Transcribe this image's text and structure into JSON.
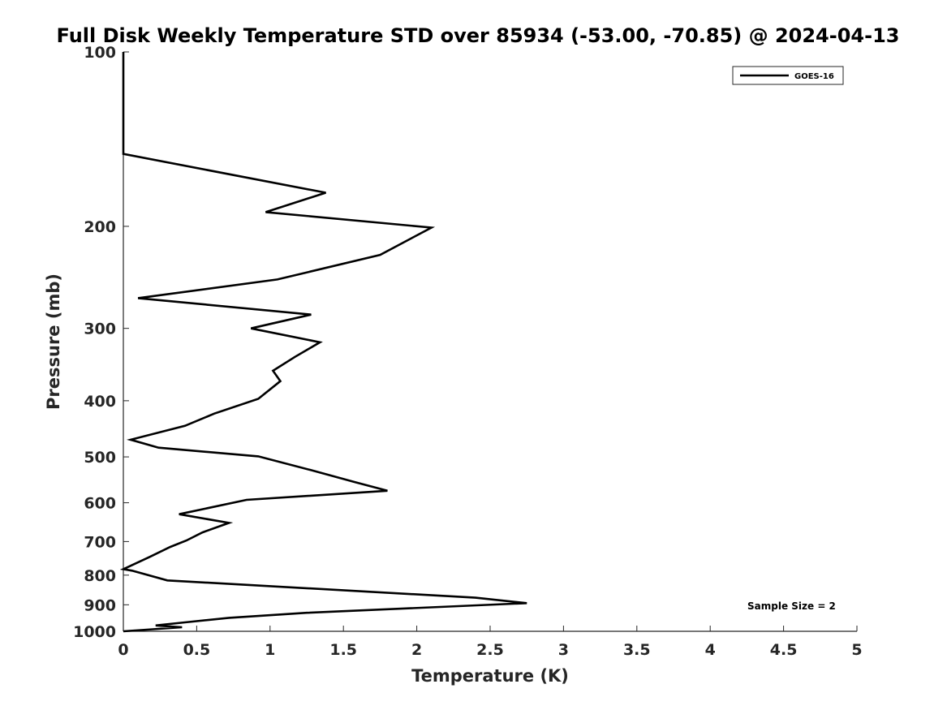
{
  "chart_data": {
    "type": "line",
    "title": "Full Disk Weekly Temperature STD over 85934 (-53.00, -70.85) @ 2024-04-13",
    "xlabel": "Temperature (K)",
    "ylabel": "Pressure (mb)",
    "xlim": [
      0,
      5
    ],
    "ylim": [
      1000,
      100
    ],
    "yscale": "log",
    "x_ticks": [
      "0",
      "0.5",
      "1",
      "1.5",
      "2",
      "2.5",
      "3",
      "3.5",
      "4",
      "4.5",
      "5"
    ],
    "y_ticks": [
      "100",
      "200",
      "300",
      "400",
      "500",
      "600",
      "700",
      "800",
      "900",
      "1000"
    ],
    "grid": false,
    "legend_position": "top-right",
    "series": [
      {
        "name": "GOES-16",
        "color": "#000000",
        "points": [
          [
            0,
            100
          ],
          [
            0,
            150
          ],
          [
            1.38,
            175
          ],
          [
            0.97,
            189
          ],
          [
            2.1,
            201
          ],
          [
            1.75,
            224
          ],
          [
            1.05,
            247
          ],
          [
            0.1,
            266
          ],
          [
            1.28,
            284
          ],
          [
            0.87,
            300
          ],
          [
            1.34,
            317
          ],
          [
            1.17,
            336
          ],
          [
            1.02,
            355
          ],
          [
            1.07,
            370
          ],
          [
            0.92,
            397
          ],
          [
            0.62,
            421
          ],
          [
            0.42,
            442
          ],
          [
            0.05,
            467
          ],
          [
            0.24,
            482
          ],
          [
            0.92,
            499
          ],
          [
            1.28,
            527
          ],
          [
            1.58,
            553
          ],
          [
            1.8,
            572
          ],
          [
            0.84,
            593
          ],
          [
            0.38,
            628
          ],
          [
            0.72,
            650
          ],
          [
            0.54,
            675
          ],
          [
            0.43,
            697
          ],
          [
            0.32,
            715
          ],
          [
            0.18,
            744
          ],
          [
            0,
            781
          ],
          [
            0.06,
            786
          ],
          [
            0.3,
            817
          ],
          [
            2.4,
            875
          ],
          [
            2.75,
            894
          ],
          [
            1.25,
            929
          ],
          [
            0.72,
            948
          ],
          [
            0.42,
            965
          ],
          [
            0.22,
            977
          ],
          [
            0.4,
            984
          ],
          [
            0,
            1000
          ]
        ]
      }
    ],
    "annotation": "Sample Size = 2"
  }
}
